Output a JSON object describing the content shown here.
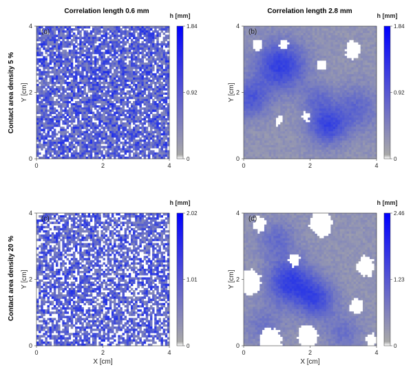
{
  "column_titles": [
    "Correlation length 0.6 mm",
    "Correlation length 2.8 mm"
  ],
  "row_labels": [
    "Contact area density 5 %",
    "Contact area density 20 %"
  ],
  "chart_data": [
    {
      "type": "heatmap",
      "panel_label": "(a)",
      "colorbar_title": "h [mm]",
      "xlabel": "",
      "ylabel": "Y [cm]",
      "xlim": [
        0,
        4
      ],
      "ylim": [
        0,
        4
      ],
      "xticks": [
        "0",
        "2",
        "4"
      ],
      "yticks": [
        "0",
        "2",
        "4"
      ],
      "colorbar_ticks": [
        "1.84",
        "0.92",
        "0"
      ],
      "colorbar_range": [
        0,
        1.84
      ],
      "correlation_length_mm": 0.6,
      "contact_area_density_pct": 5,
      "colormap": [
        "#ffffff",
        "#a0a0a0",
        "#0000ff"
      ]
    },
    {
      "type": "heatmap",
      "panel_label": "(b)",
      "colorbar_title": "h [mm]",
      "xlabel": "",
      "ylabel": "Y [cm]",
      "xlim": [
        0,
        4
      ],
      "ylim": [
        0,
        4
      ],
      "xticks": [
        "0",
        "2",
        "4"
      ],
      "yticks": [
        "0",
        "2",
        "4"
      ],
      "colorbar_ticks": [
        "1.84",
        "0.92",
        "0"
      ],
      "colorbar_range": [
        0,
        1.84
      ],
      "correlation_length_mm": 2.8,
      "contact_area_density_pct": 5,
      "colormap": [
        "#ffffff",
        "#a0a0a0",
        "#0000ff"
      ]
    },
    {
      "type": "heatmap",
      "panel_label": "(c)",
      "colorbar_title": "h [mm]",
      "xlabel": "X [cm]",
      "ylabel": "Y [cm]",
      "xlim": [
        0,
        4
      ],
      "ylim": [
        0,
        4
      ],
      "xticks": [
        "0",
        "2",
        "4"
      ],
      "yticks": [
        "0",
        "2",
        "4"
      ],
      "colorbar_ticks": [
        "2.02",
        "1.01",
        "0"
      ],
      "colorbar_range": [
        0,
        2.02
      ],
      "correlation_length_mm": 0.6,
      "contact_area_density_pct": 20,
      "colormap": [
        "#ffffff",
        "#a0a0a0",
        "#0000ff"
      ]
    },
    {
      "type": "heatmap",
      "panel_label": "(d)",
      "colorbar_title": "h [mm]",
      "xlabel": "X [cm]",
      "ylabel": "Y [cm]",
      "xlim": [
        0,
        4
      ],
      "ylim": [
        0,
        4
      ],
      "xticks": [
        "0",
        "2",
        "4"
      ],
      "yticks": [
        "0",
        "2",
        "4"
      ],
      "colorbar_ticks": [
        "2.46",
        "1.23",
        "0"
      ],
      "colorbar_range": [
        0,
        2.46
      ],
      "correlation_length_mm": 2.8,
      "contact_area_density_pct": 20,
      "colormap": [
        "#ffffff",
        "#a0a0a0",
        "#0000ff"
      ]
    }
  ]
}
